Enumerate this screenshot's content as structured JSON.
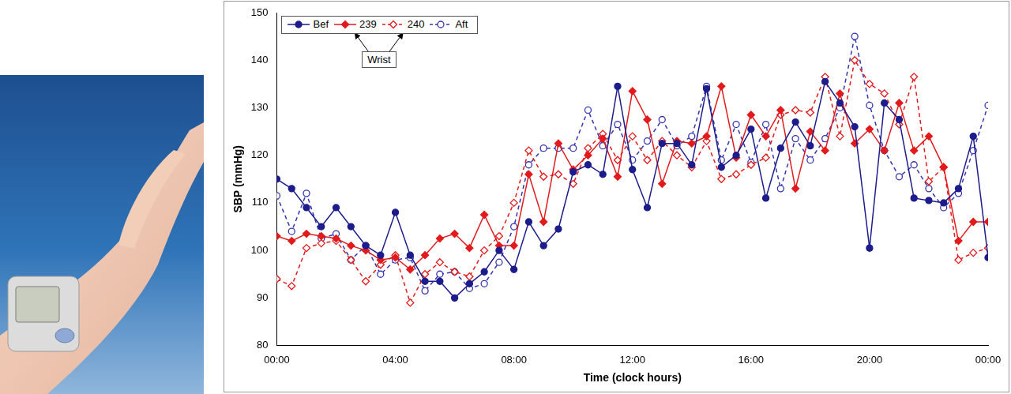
{
  "chart_data": {
    "type": "line",
    "x_label": "Time (clock hours)",
    "y_label": "SBP (mmHg)",
    "x": [
      0,
      0.5,
      1,
      1.5,
      2,
      2.5,
      3,
      3.5,
      4,
      4.5,
      5,
      5.5,
      6,
      6.5,
      7,
      7.5,
      8,
      8.5,
      9,
      9.5,
      10,
      10.5,
      11,
      11.5,
      12,
      12.5,
      13,
      13.5,
      14,
      14.5,
      15,
      15.5,
      16,
      16.5,
      17,
      17.5,
      18,
      18.5,
      19,
      19.5,
      20,
      20.5,
      21,
      21.5,
      22,
      22.5,
      23,
      23.5,
      24
    ],
    "series": [
      {
        "name": "Bef",
        "color": "#1c1c8c",
        "marker": "circle",
        "line_style": "solid",
        "values": [
          115,
          113,
          109,
          105,
          109,
          105,
          101,
          99,
          108,
          99,
          93.5,
          93.5,
          90,
          93,
          95.5,
          100,
          96,
          106,
          101,
          104.5,
          116.5,
          118,
          116,
          134.5,
          117,
          109,
          122.5,
          122.5,
          118,
          134,
          117.5,
          120,
          125.5,
          111,
          121.5,
          127,
          122,
          135.5,
          131,
          126,
          100.5,
          131,
          127.5,
          111,
          110.5,
          110,
          113,
          124,
          98.5
        ]
      },
      {
        "name": "239",
        "color": "#e31a1c",
        "marker": "diamond",
        "line_style": "solid",
        "values": [
          103,
          102,
          103.5,
          103,
          102.5,
          101,
          100,
          98,
          98.5,
          96,
          99,
          102.5,
          103.5,
          100.5,
          107.5,
          101,
          101,
          116,
          106,
          122.5,
          117,
          120,
          123.5,
          115.5,
          133.5,
          127.5,
          114,
          123,
          122.5,
          124,
          134.5,
          119.5,
          128.5,
          124,
          129.5,
          113,
          125,
          121,
          133,
          122.5,
          125.5,
          121,
          131,
          121,
          124,
          117.5,
          102,
          106,
          106
        ]
      },
      {
        "name": "240",
        "color": "#e31a1c",
        "marker": "diamond-open",
        "line_style": "dashed",
        "values": [
          94,
          92.5,
          100.5,
          101.5,
          102,
          98,
          93.5,
          97,
          99,
          89,
          95,
          97.5,
          95.5,
          94.5,
          100,
          103,
          110,
          121,
          115.5,
          116,
          114,
          121.5,
          124.5,
          119,
          124,
          119,
          123,
          120,
          117.5,
          123,
          115,
          116,
          118,
          119.5,
          128.5,
          129.5,
          129,
          136.5,
          124,
          140,
          135,
          133,
          126.5,
          136.5,
          114.5,
          117.5,
          98,
          99.5,
          100.5
        ]
      },
      {
        "name": "Aft",
        "color": "#3535b0",
        "marker": "circle-open",
        "line_style": "dashed",
        "values": [
          111.5,
          104,
          112,
          102.5,
          103.5,
          98,
          101,
          95,
          98,
          98.5,
          91.5,
          95,
          95.5,
          92,
          93,
          97.5,
          105,
          118,
          121.5,
          121.5,
          121.5,
          129.5,
          122,
          126.5,
          119,
          123,
          127.5,
          122,
          124,
          134.5,
          119,
          126.5,
          118.5,
          126.5,
          113,
          123.5,
          119,
          123.5,
          130,
          145,
          130.5,
          121,
          115.5,
          118,
          113,
          109,
          112,
          121,
          130.5
        ]
      }
    ],
    "xlim": [
      0,
      24
    ],
    "xticks": [
      {
        "value": 0,
        "label": "00:00"
      },
      {
        "value": 4,
        "label": "04:00"
      },
      {
        "value": 8,
        "label": "08:00"
      },
      {
        "value": 12,
        "label": "12:00"
      },
      {
        "value": 16,
        "label": "16:00"
      },
      {
        "value": 20,
        "label": "20:00"
      },
      {
        "value": 24,
        "label": "00:00"
      }
    ],
    "ylim": [
      80,
      150
    ],
    "yticks": [
      80,
      90,
      100,
      110,
      120,
      130,
      140,
      150
    ],
    "grid": false,
    "legend": "upper left",
    "annotation": {
      "text": "Wrist",
      "series": [
        "239",
        "240"
      ]
    }
  }
}
